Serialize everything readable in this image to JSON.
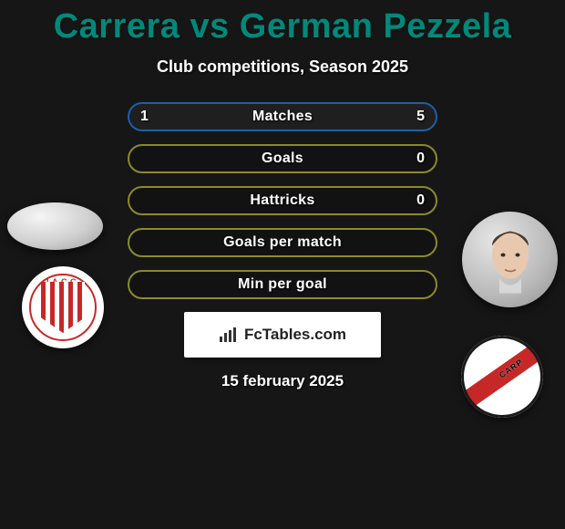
{
  "title": "Carrera vs German Pezzela",
  "title_color": "#00897b",
  "subtitle": "Club competitions, Season 2025",
  "background_color": "#161616",
  "player_left": {
    "name": "Carrera"
  },
  "player_right": {
    "name": "German Pezzela"
  },
  "club_left": {
    "label": "I.A.C.C.",
    "primary": "#c62828",
    "secondary": "#ffffff"
  },
  "club_right": {
    "label": "CARP",
    "primary": "#c62828",
    "secondary": "#ffffff"
  },
  "bars": {
    "border_colors": {
      "blue": "#1f5fa8",
      "olive": "#8a8a2e"
    },
    "rows": [
      {
        "label": "Matches",
        "left": "1",
        "right": "5",
        "color": "blue",
        "fill_left_pct": 17,
        "fill_right_pct": 83
      },
      {
        "label": "Goals",
        "left": "",
        "right": "0",
        "color": "olive",
        "fill_left_pct": 0,
        "fill_right_pct": 0
      },
      {
        "label": "Hattricks",
        "left": "",
        "right": "0",
        "color": "olive",
        "fill_left_pct": 0,
        "fill_right_pct": 0
      },
      {
        "label": "Goals per match",
        "left": "",
        "right": "",
        "color": "olive",
        "fill_left_pct": 0,
        "fill_right_pct": 0
      },
      {
        "label": "Min per goal",
        "left": "",
        "right": "",
        "color": "olive",
        "fill_left_pct": 0,
        "fill_right_pct": 0
      }
    ]
  },
  "logo": {
    "text": "FcTables.com"
  },
  "date": "15 february 2025"
}
